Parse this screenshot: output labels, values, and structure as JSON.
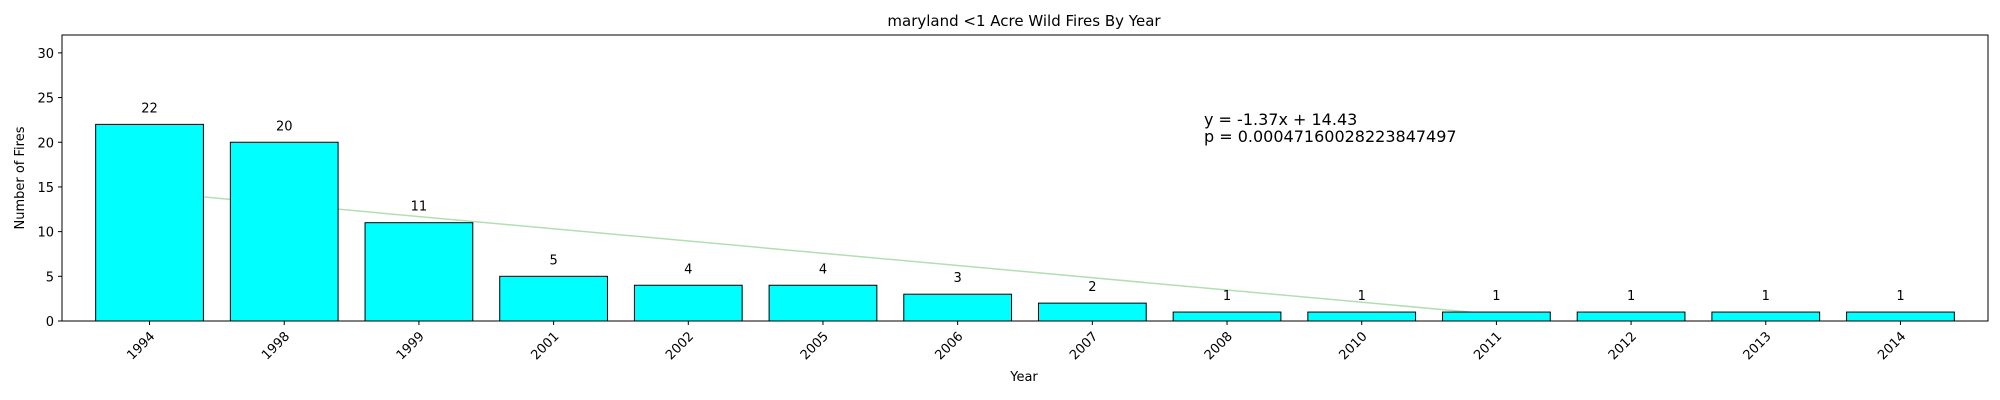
{
  "chart_data": {
    "type": "bar",
    "title": "maryland <1 Acre Wild Fires By Year",
    "xlabel": "Year",
    "ylabel": "Number of Fires",
    "categories": [
      "1994",
      "1998",
      "1999",
      "2001",
      "2002",
      "2005",
      "2006",
      "2007",
      "2008",
      "2010",
      "2011",
      "2012",
      "2013",
      "2014"
    ],
    "values": [
      22,
      20,
      11,
      5,
      4,
      4,
      3,
      2,
      1,
      1,
      1,
      1,
      1,
      1
    ],
    "ylim": [
      0,
      32
    ],
    "yticks": [
      0,
      5,
      10,
      15,
      20,
      25,
      30
    ],
    "grid": false,
    "bar_color": "#00ffff",
    "bar_edge_color": "#000000",
    "trendline": {
      "slope": -1.37,
      "intercept": 14.43,
      "color": "#b3deb3"
    },
    "annotations": [
      {
        "text": "y = -1.37x + 14.43",
        "color": "#008000"
      },
      {
        "text": "p = 0.00047160028223847497",
        "color": "#0000ff"
      }
    ]
  }
}
